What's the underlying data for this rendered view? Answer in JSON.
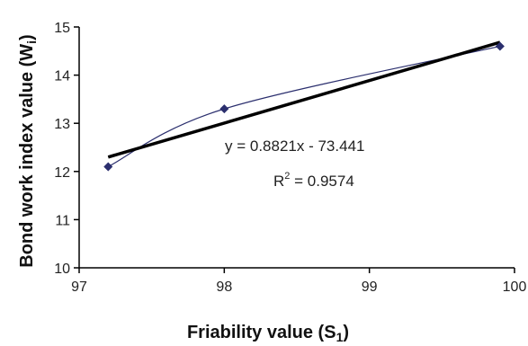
{
  "chart_data": {
    "type": "scatter",
    "xlabel": "Friability value (S",
    "xlabel_sub": "1",
    "xlabel_end": ")",
    "ylabel": "Bond work index value (W",
    "ylabel_sub": "i",
    "ylabel_end": ")",
    "xlim": [
      97,
      100
    ],
    "ylim": [
      10,
      15
    ],
    "x_ticks": [
      97,
      98,
      99,
      100
    ],
    "y_ticks": [
      10,
      11,
      12,
      13,
      14,
      15
    ],
    "grid": false,
    "series": [
      {
        "x": [
          97.2,
          98.0,
          99.9
        ],
        "y": [
          12.1,
          13.3,
          14.6
        ],
        "marker": "diamond",
        "color": "#2b2f6e",
        "smooth_line": true
      }
    ],
    "trendline": {
      "slope": 0.8821,
      "intercept": -73.441,
      "x_range": [
        97.2,
        99.9
      ],
      "color": "#000000"
    },
    "annotations": {
      "equation_prefix": "y = 0.8821x - 73.441",
      "r2_prefix": "R",
      "r2_sup": "2",
      "r2_value": " = 0.9574"
    }
  }
}
